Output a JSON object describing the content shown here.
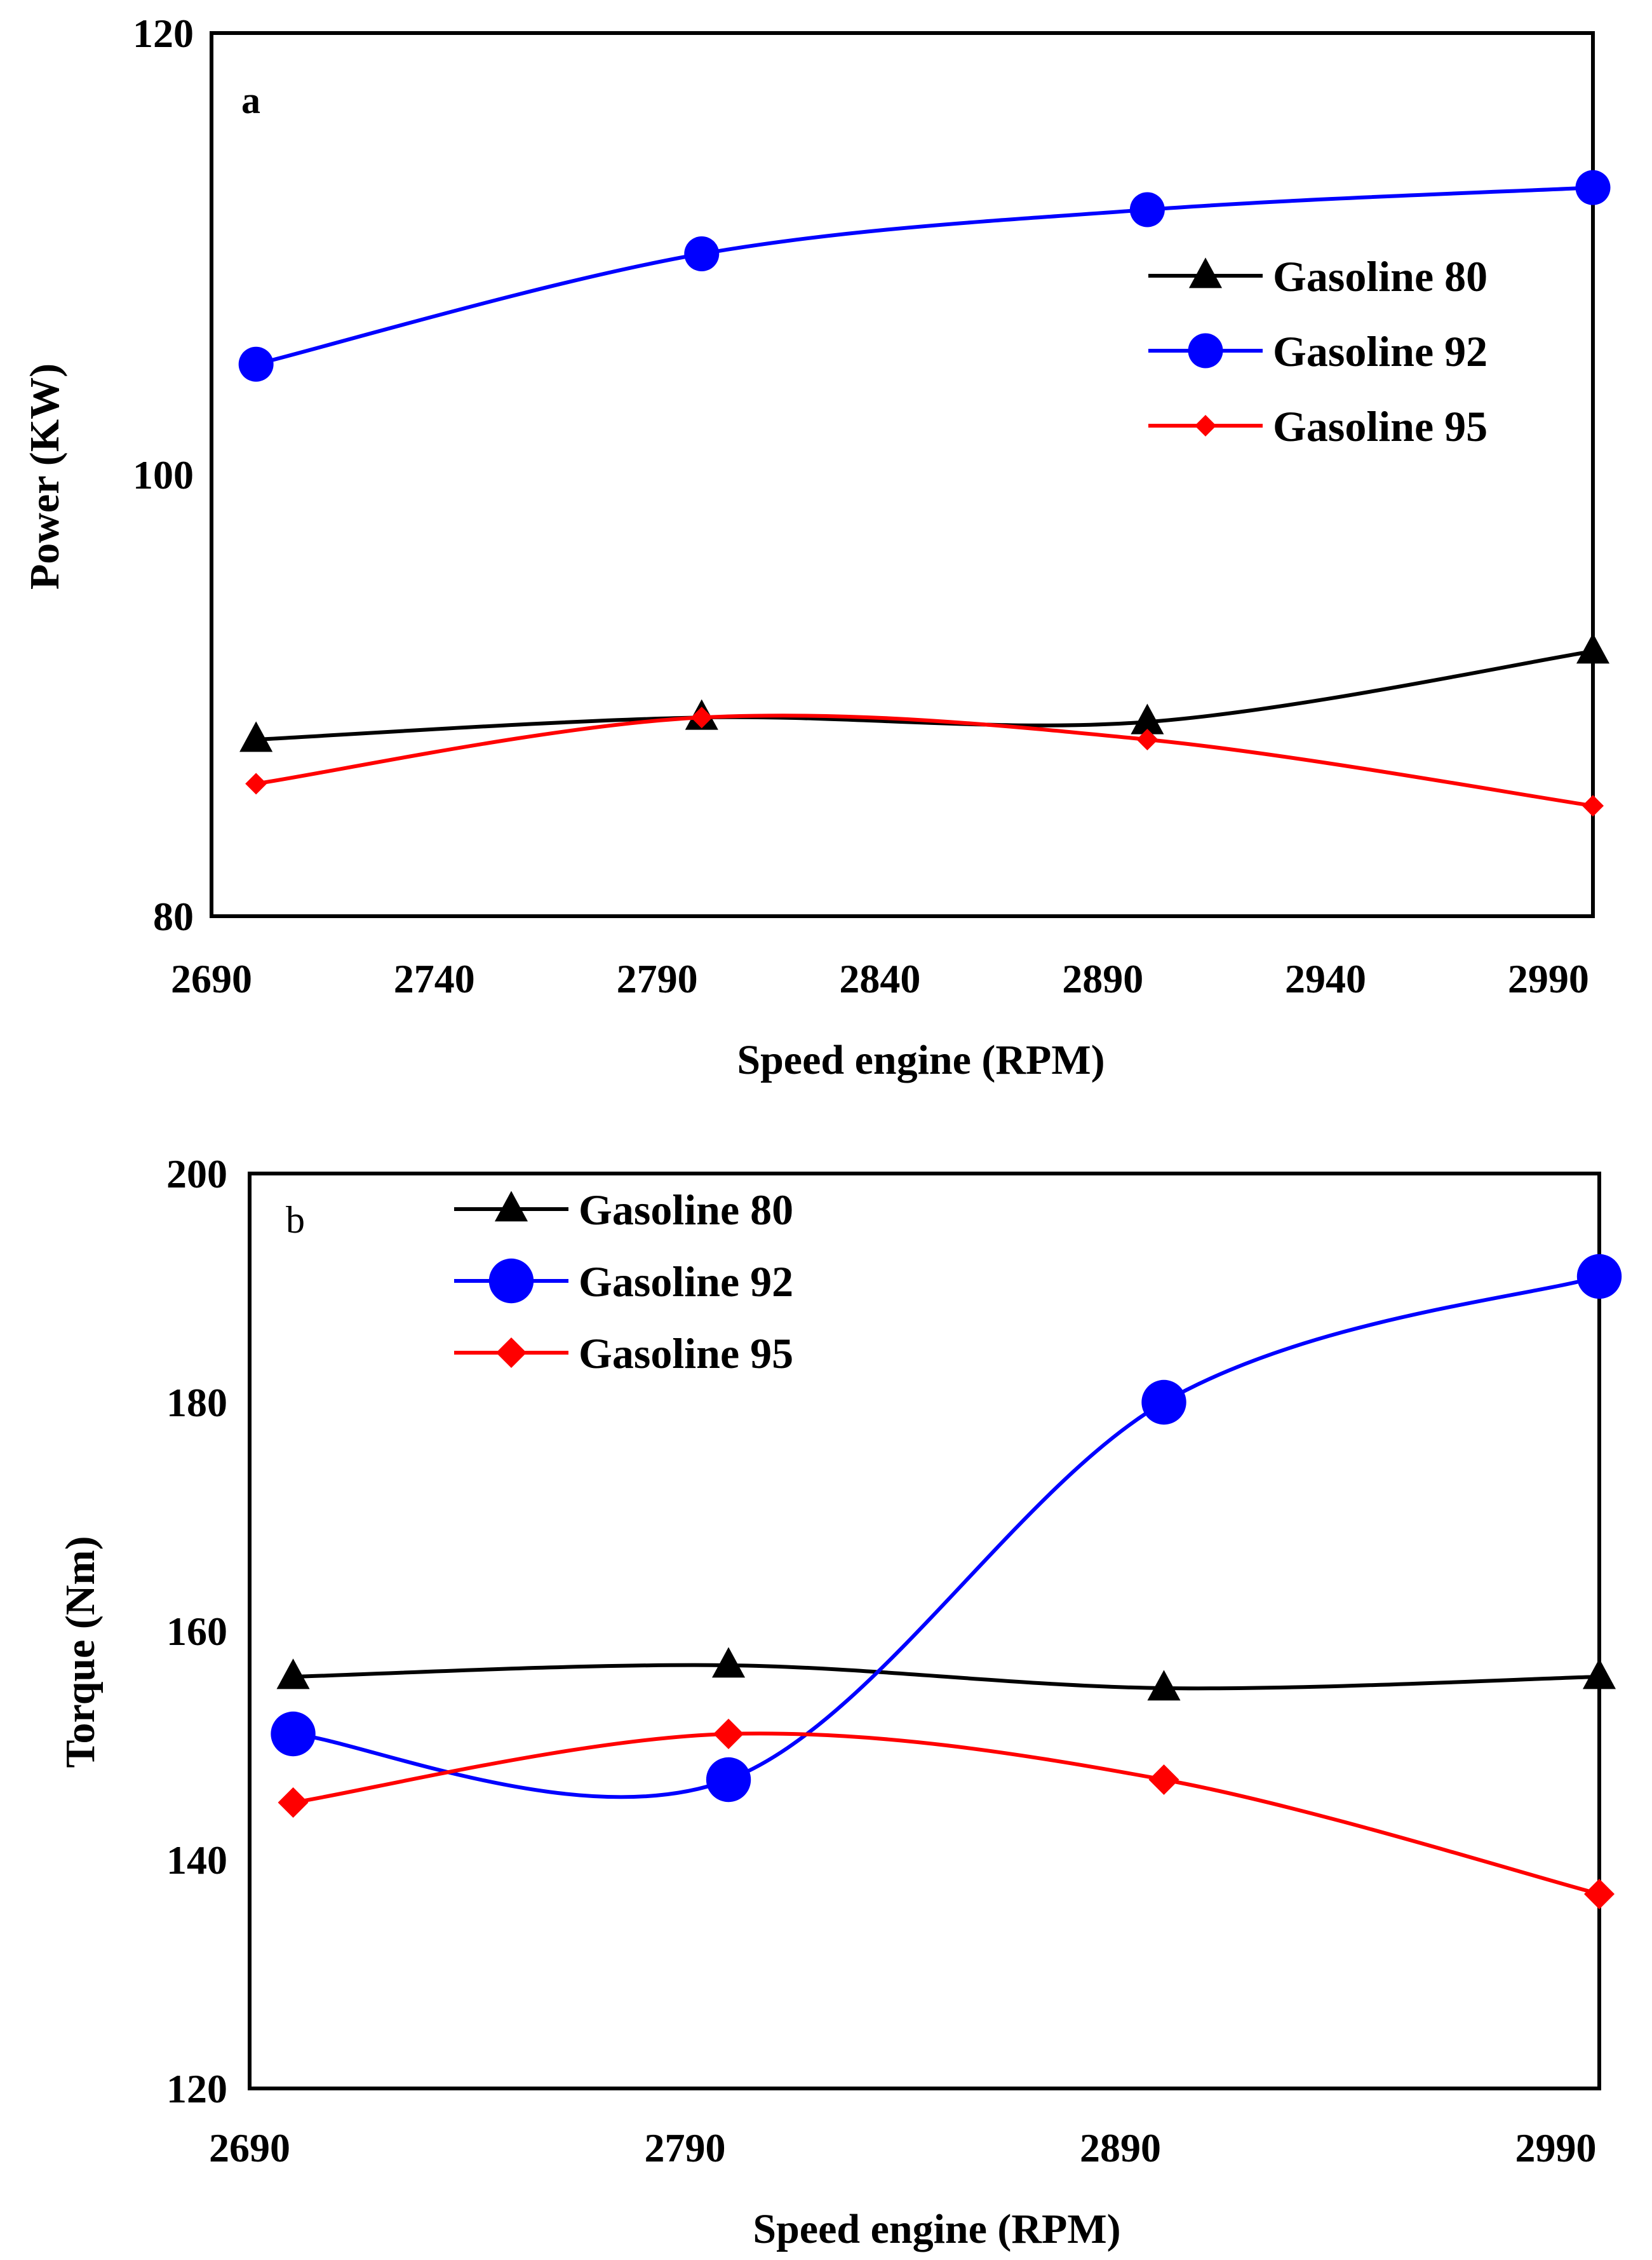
{
  "chart_data": [
    {
      "type": "line",
      "panel_label": "a",
      "xlabel": "Speed engine (RPM)",
      "ylabel": "Power (KW)",
      "xlim": [
        2690,
        3000
      ],
      "ylim": [
        80,
        120
      ],
      "xticks": [
        "2690",
        "2740",
        "2790",
        "2840",
        "2890",
        "2940",
        "2990"
      ],
      "yticks": [
        "80",
        "100",
        "120"
      ],
      "legend_position": "right",
      "series": [
        {
          "name": "Gasoline 80",
          "color": "#000000",
          "marker": "triangle",
          "x": [
            2700,
            2800,
            2900,
            3000
          ],
          "values": [
            88,
            89,
            88.8,
            92
          ]
        },
        {
          "name": "Gasoline 92",
          "color": "#0000ff",
          "marker": "circle",
          "x": [
            2700,
            2800,
            2900,
            3000
          ],
          "values": [
            105,
            110,
            112,
            113
          ]
        },
        {
          "name": "Gasoline 95",
          "color": "#ff0000",
          "marker": "diamond",
          "x": [
            2700,
            2800,
            2900,
            3000
          ],
          "values": [
            86,
            89,
            88,
            85
          ]
        }
      ]
    },
    {
      "type": "line",
      "panel_label": "b",
      "xlabel": "Speed engine (RPM)",
      "ylabel": "Torque (Nm)",
      "xlim": [
        2690,
        3000
      ],
      "ylim": [
        120,
        200
      ],
      "xticks": [
        "2690",
        "2790",
        "2890",
        "2990"
      ],
      "yticks": [
        "120",
        "140",
        "160",
        "180",
        "200"
      ],
      "legend_position": "top-left",
      "series": [
        {
          "name": "Gasoline 80",
          "color": "#000000",
          "marker": "triangle",
          "x": [
            2700,
            2800,
            2900,
            3000
          ],
          "values": [
            156,
            157,
            155,
            156
          ]
        },
        {
          "name": "Gasoline 92",
          "color": "#0000ff",
          "marker": "circle",
          "x": [
            2700,
            2800,
            2900,
            3000
          ],
          "values": [
            151,
            147,
            180,
            191
          ]
        },
        {
          "name": "Gasoline 95",
          "color": "#ff0000",
          "marker": "diamond",
          "x": [
            2700,
            2800,
            2900,
            3000
          ],
          "values": [
            145,
            151,
            147,
            137
          ]
        }
      ]
    }
  ]
}
